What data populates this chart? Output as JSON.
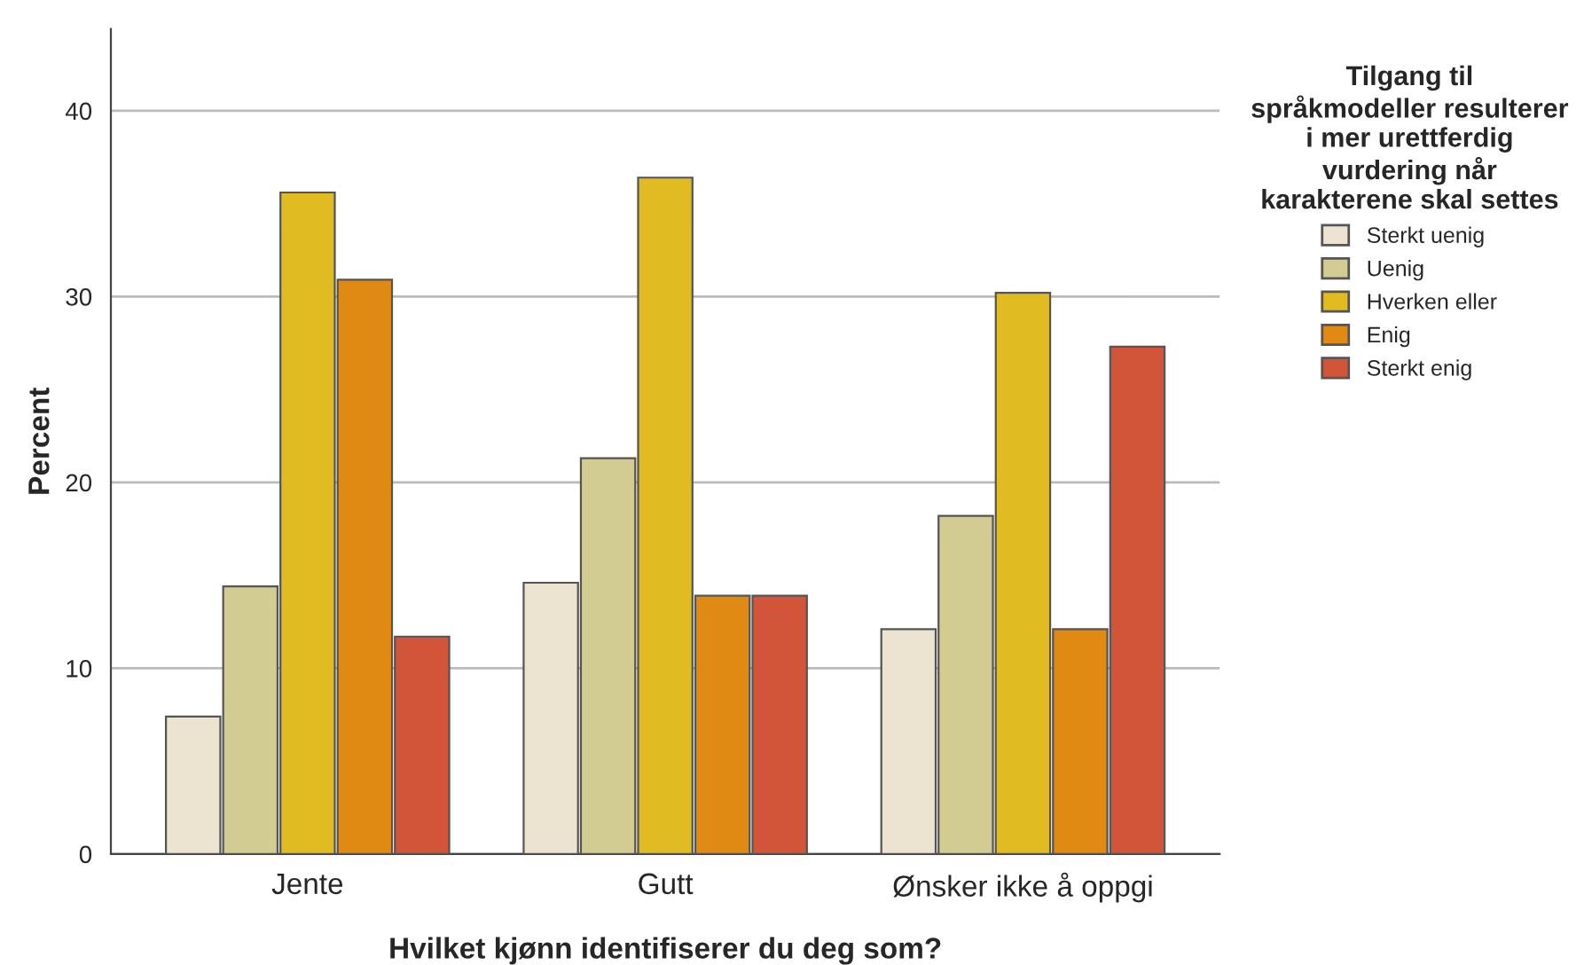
{
  "chart_data": {
    "type": "bar",
    "xlabel": "Hvilket kjønn identifiserer du deg som?",
    "ylabel": "Percent",
    "legend_title": "Tilgang til språkmodeller resulterer i mer urettferdig vurdering når karakterene skal settes",
    "categories": [
      "Jente",
      "Gutt",
      "Ønsker ikke å oppgi"
    ],
    "series": [
      {
        "name": "Sterkt uenig",
        "color": "#ece4d0",
        "values": [
          7.4,
          14.6,
          12.1
        ]
      },
      {
        "name": "Uenig",
        "color": "#d2cb92",
        "values": [
          14.4,
          21.3,
          18.2
        ]
      },
      {
        "name": "Hverken eller",
        "color": "#e0bb21",
        "values": [
          35.6,
          36.4,
          30.2
        ]
      },
      {
        "name": "Enig",
        "color": "#e08a13",
        "values": [
          30.9,
          13.9,
          12.1
        ]
      },
      {
        "name": "Sterkt enig",
        "color": "#d2553a",
        "values": [
          11.7,
          13.9,
          27.3
        ]
      }
    ],
    "ylim": [
      0,
      44.4
    ],
    "yticks": [
      0,
      10,
      20,
      30,
      40
    ],
    "grid": "y",
    "legend": "right"
  }
}
